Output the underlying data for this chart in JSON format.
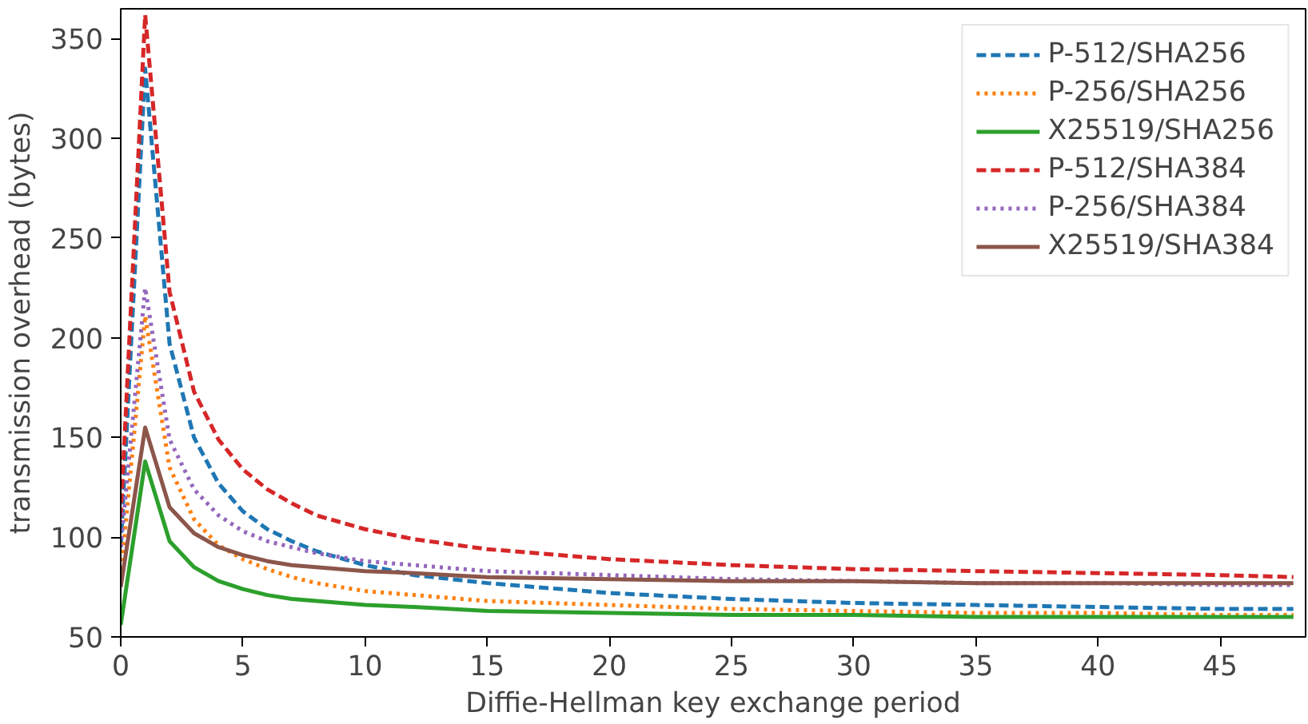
{
  "chart_data": {
    "type": "line",
    "xlabel": "Diffie-Hellman key exchange period",
    "ylabel": "transmission overhead (bytes)",
    "x": [
      0,
      1,
      2,
      3,
      4,
      5,
      6,
      7,
      8,
      10,
      12,
      15,
      20,
      25,
      30,
      35,
      40,
      45,
      48
    ],
    "xlim": [
      0,
      48.5
    ],
    "ylim": [
      50,
      365
    ],
    "xticks": [
      0,
      5,
      10,
      15,
      20,
      25,
      30,
      35,
      40,
      45
    ],
    "yticks": [
      50,
      100,
      150,
      200,
      250,
      300,
      350
    ],
    "grid": false,
    "legend": "top right",
    "series": [
      {
        "name": "P-512/SHA256",
        "color": "#1f77b4",
        "line_style": "dashed",
        "values": [
          95,
          335,
          197,
          150,
          127,
          113,
          104,
          98,
          93,
          86,
          81,
          77,
          72,
          69,
          67,
          66,
          65,
          64,
          64
        ]
      },
      {
        "name": "P-256/SHA256",
        "color": "#ff7f0e",
        "line_style": "dotted",
        "values": [
          80,
          211,
          135,
          109,
          96,
          89,
          84,
          80,
          77,
          73,
          71,
          68,
          66,
          64,
          63,
          62,
          62,
          61,
          61
        ]
      },
      {
        "name": "X25519/SHA256",
        "color": "#2ca02c",
        "line_style": "solid",
        "values": [
          56,
          138,
          98,
          85,
          78,
          74,
          71,
          69,
          68,
          66,
          65,
          63,
          62,
          61,
          61,
          60,
          60,
          60,
          60
        ]
      },
      {
        "name": "P-512/SHA384",
        "color": "#d62728",
        "line_style": "dashed",
        "values": [
          110,
          362,
          223,
          173,
          149,
          134,
          124,
          117,
          111,
          104,
          99,
          94,
          89,
          86,
          84,
          83,
          82,
          81,
          80
        ]
      },
      {
        "name": "P-256/SHA384",
        "color": "#9467bd",
        "line_style": "dotted",
        "values": [
          95,
          225,
          149,
          124,
          111,
          103,
          98,
          95,
          92,
          88,
          86,
          83,
          81,
          79,
          78,
          77,
          77,
          76,
          76
        ]
      },
      {
        "name": "X25519/SHA384",
        "color": "#8c564b",
        "line_style": "solid",
        "values": [
          75,
          155,
          115,
          102,
          95,
          91,
          88,
          86,
          85,
          83,
          82,
          80,
          79,
          78,
          78,
          77,
          77,
          77,
          77
        ]
      }
    ]
  }
}
